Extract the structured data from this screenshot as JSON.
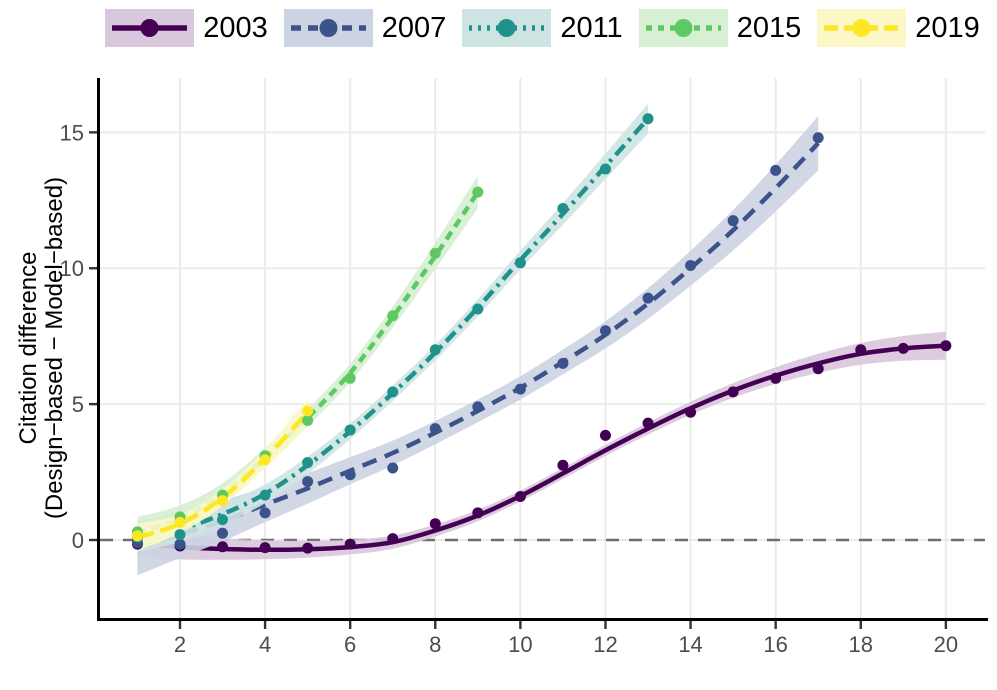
{
  "figure": {
    "title": "",
    "ylabel_line1": "Citation difference",
    "ylabel_line2": "(Design−based − Model−based)"
  },
  "chart_data": {
    "type": "line",
    "title": "",
    "xlabel": "",
    "ylabel": "Citation difference (Design−based − Model−based)",
    "x_ticks": [
      2,
      4,
      6,
      8,
      10,
      12,
      14,
      16,
      18,
      20
    ],
    "y_ticks": [
      0,
      5,
      10,
      15
    ],
    "xlim": [
      0.12,
      20.92
    ],
    "ylim": [
      -2.87,
      17.0
    ],
    "grid": "major-only",
    "legend_position": "top",
    "zero_reference_line": 0,
    "colors": {
      "grid": "#ebebeb",
      "zero_line": "#6f6f6f",
      "axis_line": "#000000",
      "tick_text": "#4d4d4d",
      "axis_title": "#000000"
    },
    "series": [
      {
        "name": "2003",
        "color": "#440154",
        "ribbon_color": "#d9c7dd",
        "linetype": "solid",
        "dash": "",
        "legend_dash": "",
        "ribbon_mid": 0.2,
        "ribbon_end": 0.52,
        "x": [
          1,
          2,
          3,
          4,
          5,
          6,
          7,
          8,
          9,
          10,
          11,
          12,
          13,
          14,
          15,
          16,
          17,
          18,
          19,
          20
        ],
        "y": [
          -0.15,
          -0.22,
          -0.25,
          -0.28,
          -0.3,
          -0.15,
          0.05,
          0.6,
          1.0,
          1.6,
          2.75,
          3.85,
          4.3,
          4.7,
          5.45,
          5.95,
          6.3,
          7.0,
          7.05,
          7.15
        ],
        "smooth": [
          -0.12,
          -0.26,
          -0.33,
          -0.36,
          -0.34,
          -0.26,
          -0.08,
          0.35,
          0.9,
          1.62,
          2.45,
          3.3,
          4.1,
          4.85,
          5.5,
          6.05,
          6.5,
          6.85,
          7.05,
          7.15
        ]
      },
      {
        "name": "2007",
        "color": "#3b528b",
        "ribbon_color": "#ccd3e2",
        "linetype": "dashed",
        "dash": "15 9",
        "legend_dash": "10 7",
        "ribbon_mid": 0.42,
        "ribbon_end": 1.0,
        "x": [
          1,
          2,
          3,
          4,
          5,
          6,
          7,
          8,
          9,
          10,
          11,
          12,
          13,
          14,
          15,
          16,
          17
        ],
        "y": [
          -0.1,
          -0.15,
          0.25,
          1.0,
          2.15,
          2.4,
          2.65,
          4.1,
          4.9,
          5.55,
          6.5,
          7.7,
          8.9,
          10.1,
          11.75,
          13.6,
          14.8
        ],
        "smooth": [
          -0.3,
          0.2,
          0.7,
          1.3,
          1.9,
          2.55,
          3.2,
          3.95,
          4.75,
          5.6,
          6.55,
          7.55,
          8.7,
          10.0,
          11.4,
          12.95,
          14.6
        ]
      },
      {
        "name": "2011",
        "color": "#21918c",
        "ribbon_color": "#cee4e3",
        "linetype": "dotdash",
        "dash": "3 6 13 6",
        "legend_dash": "3 6",
        "ribbon_mid": 0.28,
        "ribbon_end": 0.55,
        "x": [
          1,
          2,
          3,
          4,
          5,
          6,
          7,
          8,
          9,
          10,
          11,
          12,
          13
        ],
        "y": [
          0.1,
          0.2,
          0.75,
          1.65,
          2.85,
          4.05,
          5.45,
          7.0,
          8.5,
          10.2,
          12.2,
          13.65,
          15.5
        ],
        "smooth": [
          0.1,
          0.4,
          0.95,
          1.7,
          2.75,
          4.0,
          5.4,
          6.9,
          8.55,
          10.3,
          12.0,
          13.75,
          15.5
        ]
      },
      {
        "name": "2015",
        "color": "#5ec962",
        "ribbon_color": "#d7efd3",
        "linetype": "dashed",
        "dash": "9 6",
        "legend_dash": "6 6",
        "ribbon_mid": 0.32,
        "ribbon_end": 0.6,
        "x": [
          1,
          2,
          3,
          4,
          5,
          6,
          7,
          8,
          9
        ],
        "y": [
          0.3,
          0.85,
          1.65,
          3.1,
          4.4,
          5.95,
          8.25,
          10.55,
          12.8
        ],
        "smooth": [
          0.25,
          0.8,
          1.7,
          3.05,
          4.5,
          6.15,
          8.2,
          10.45,
          12.8
        ]
      },
      {
        "name": "2019",
        "color": "#fde725",
        "ribbon_color": "#fbf7c6",
        "linetype": "longdash",
        "dash": "17 7",
        "legend_dash": "14 6",
        "ribbon_mid": 0.3,
        "ribbon_end": 0.5,
        "x": [
          1,
          2,
          3,
          4,
          5
        ],
        "y": [
          0.15,
          0.65,
          1.45,
          2.95,
          4.75
        ],
        "smooth": [
          0.1,
          0.6,
          1.55,
          3.0,
          4.7
        ]
      }
    ]
  }
}
